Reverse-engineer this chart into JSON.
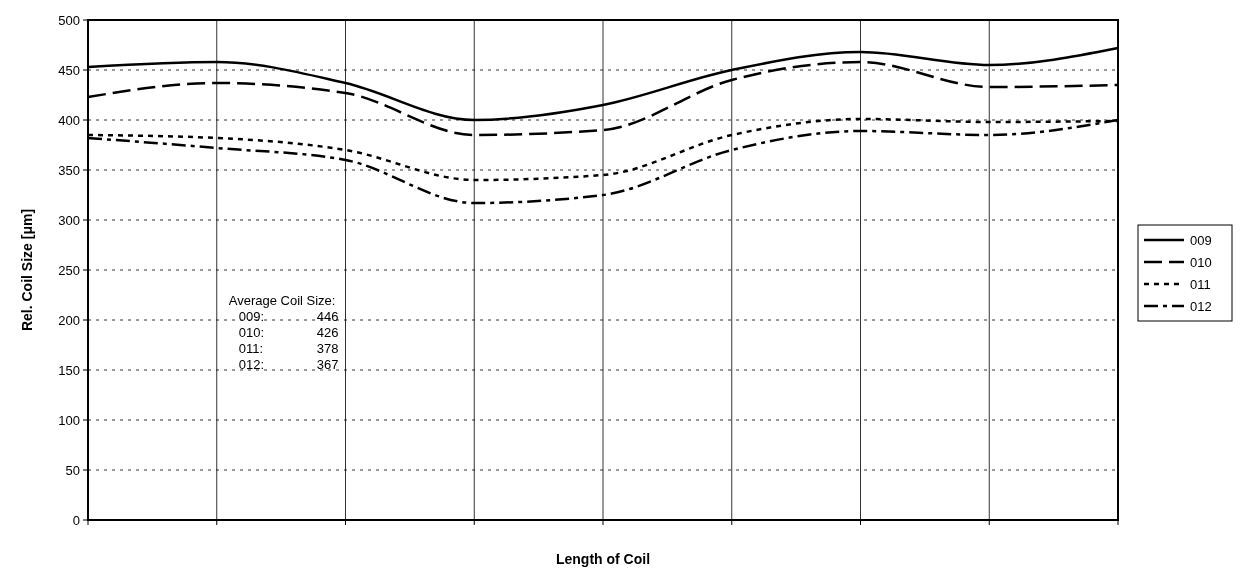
{
  "chart_data": {
    "type": "line",
    "xlabel": "Length of Coil",
    "ylabel": "Rel. Coil Size [μm]",
    "categories": [
      null,
      null,
      null,
      null,
      null,
      null,
      null,
      null,
      null
    ],
    "series": [
      {
        "name": "009",
        "color": "#000000",
        "line_style": "solid",
        "values": [
          453,
          458,
          437,
          400,
          415,
          450,
          468,
          455,
          472
        ]
      },
      {
        "name": "010",
        "color": "#000000",
        "line_style": "dashed",
        "values": [
          423,
          437,
          427,
          385,
          390,
          440,
          458,
          433,
          435
        ]
      },
      {
        "name": "011",
        "color": "#000000",
        "line_style": "dotted",
        "values": [
          385,
          382,
          370,
          340,
          345,
          385,
          401,
          398,
          399
        ]
      },
      {
        "name": "012",
        "color": "#000000",
        "line_style": "dashdot",
        "values": [
          382,
          372,
          360,
          317,
          325,
          370,
          389,
          385,
          400
        ]
      }
    ],
    "ylim": [
      0,
      500
    ],
    "yticks": [
      0,
      50,
      100,
      150,
      200,
      250,
      300,
      350,
      400,
      450,
      500
    ],
    "grid": true,
    "legend": "right",
    "marker": "none",
    "annotations": [
      "Average Coil Size:",
      "009:\t446",
      "010:\t426",
      "011:\t378",
      "012:\t367"
    ]
  }
}
